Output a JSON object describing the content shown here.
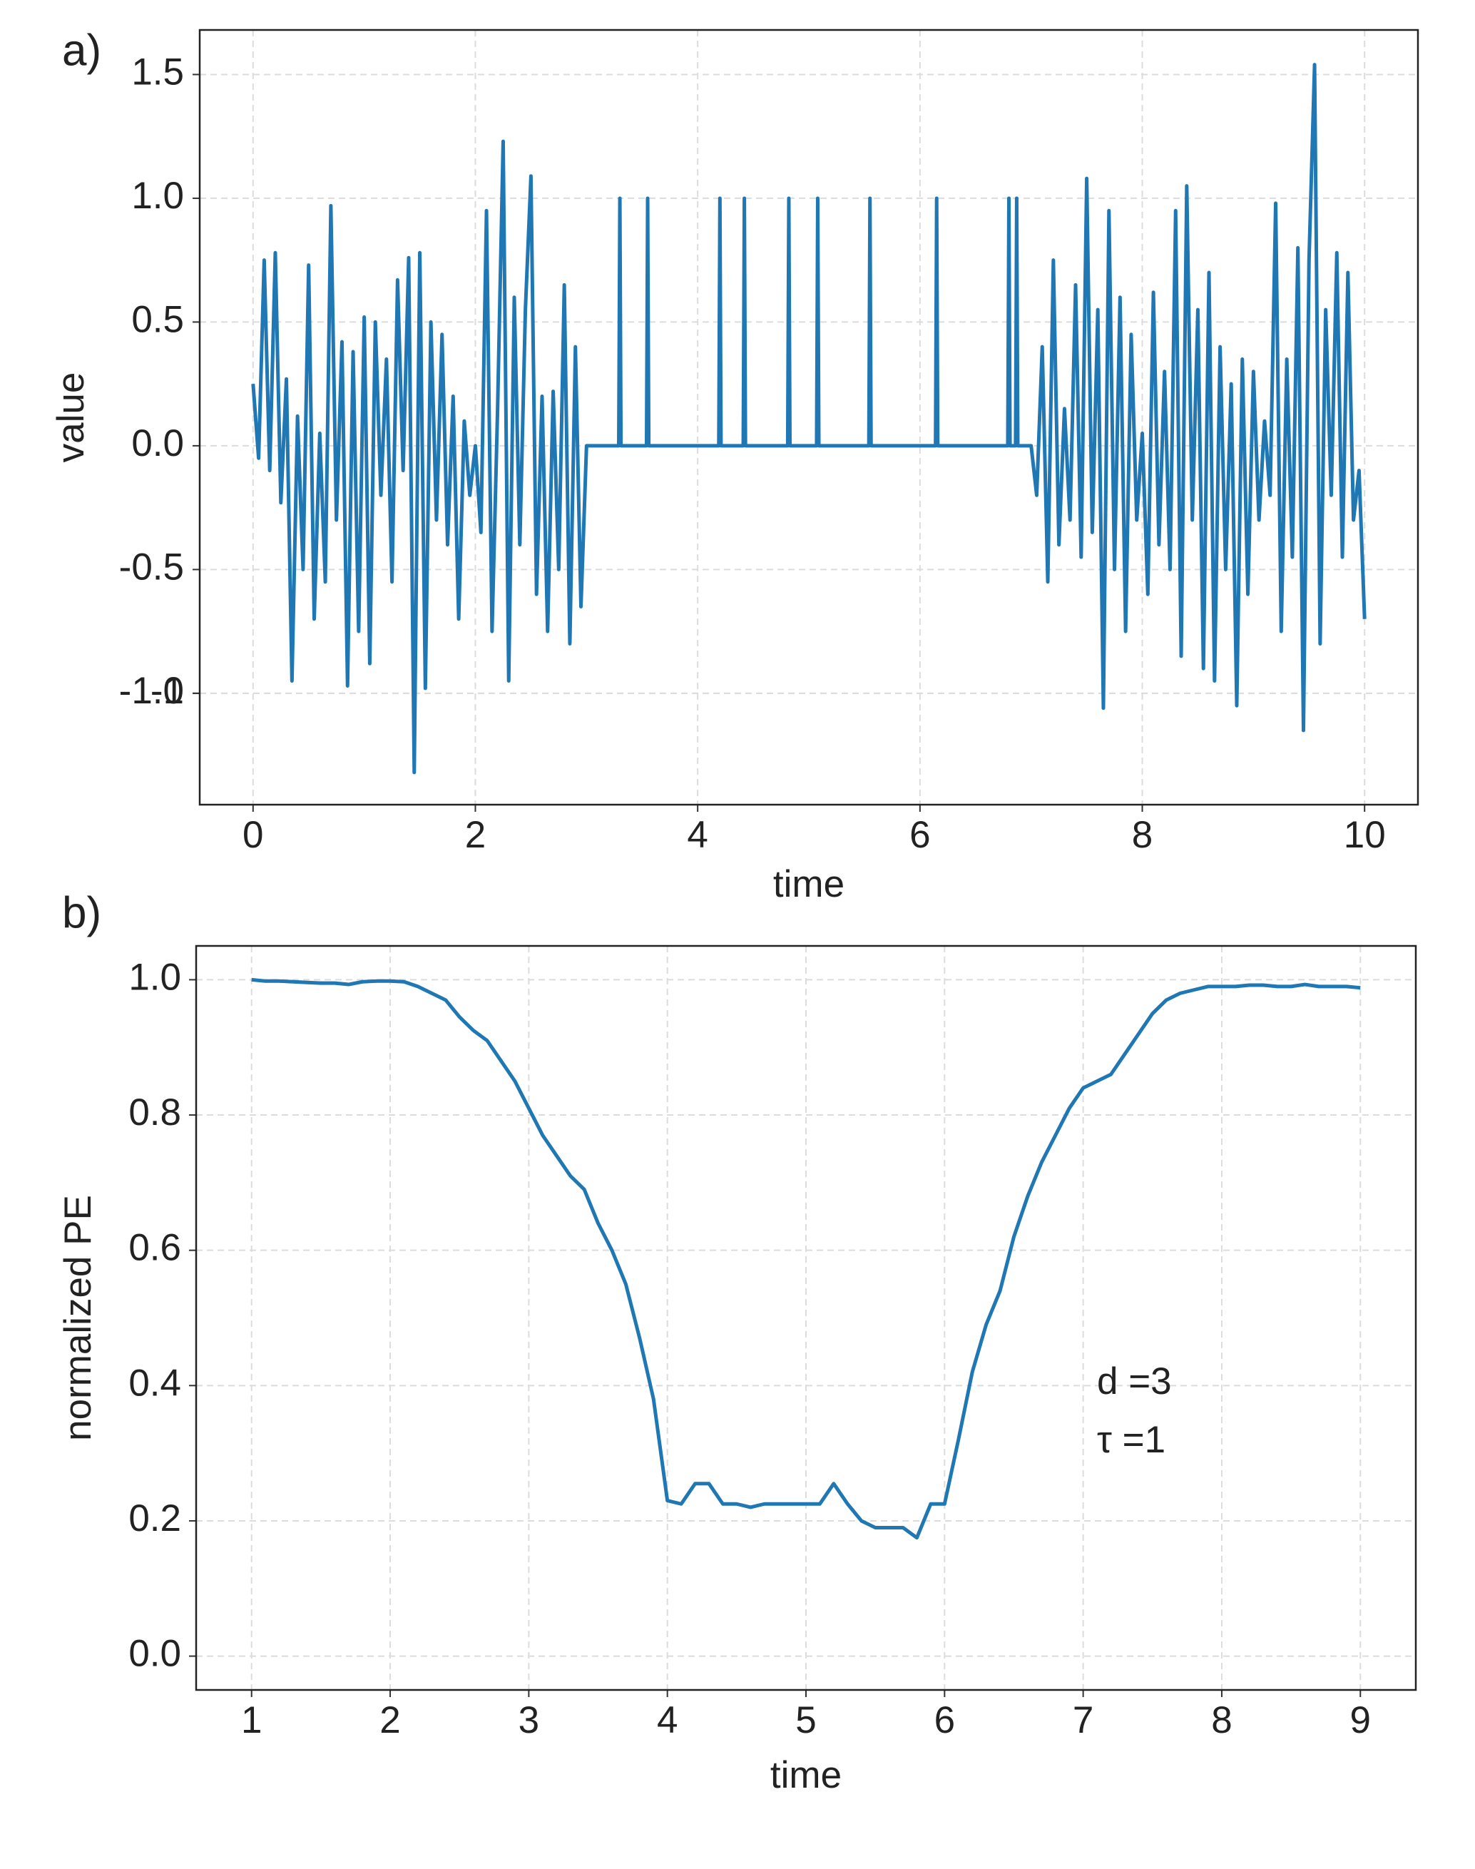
{
  "chart_data": [
    {
      "type": "line",
      "panel_label": "a)",
      "xlabel": "time",
      "ylabel": "value",
      "xlim": [
        -0.48,
        10.48
      ],
      "ylim": [
        -1.45,
        1.68
      ],
      "xticks": [
        0,
        2,
        4,
        6,
        8,
        10
      ],
      "yticks": [
        -1,
        {
          "value": -1,
          "label": "-1.0"
        },
        -0.5,
        {
          "value": 0,
          "label": "0.0"
        },
        0.5,
        {
          "value": 1,
          "label": "1.0"
        },
        1.5
      ],
      "grid": true,
      "color": "#1f77b4",
      "x": [
        0,
        0.05,
        0.1,
        0.15,
        0.2,
        0.25,
        0.3,
        0.35,
        0.4,
        0.45,
        0.5,
        0.55,
        0.6,
        0.65,
        0.7,
        0.75,
        0.8,
        0.85,
        0.9,
        0.95,
        1.0,
        1.05,
        1.1,
        1.15,
        1.2,
        1.25,
        1.3,
        1.35,
        1.4,
        1.45,
        1.5,
        1.55,
        1.6,
        1.65,
        1.7,
        1.75,
        1.8,
        1.85,
        1.9,
        1.95,
        2.0,
        2.05,
        2.1,
        2.15,
        2.2,
        2.25,
        2.3,
        2.35,
        2.4,
        2.45,
        2.5,
        2.55,
        2.6,
        2.65,
        2.7,
        2.75,
        2.8,
        2.85,
        2.9,
        2.95,
        3.0,
        3.29,
        3.3,
        3.31,
        3.54,
        3.55,
        3.56,
        4.19,
        4.2,
        4.21,
        4.41,
        4.42,
        4.43,
        4.81,
        4.82,
        4.83,
        5.07,
        5.08,
        5.09,
        5.54,
        5.55,
        5.56,
        6.14,
        6.15,
        6.16,
        6.79,
        6.8,
        6.81,
        6.86,
        6.87,
        6.88,
        7.0,
        7.05,
        7.1,
        7.15,
        7.2,
        7.25,
        7.3,
        7.35,
        7.4,
        7.45,
        7.5,
        7.55,
        7.6,
        7.65,
        7.7,
        7.75,
        7.8,
        7.85,
        7.9,
        7.95,
        8.0,
        8.05,
        8.1,
        8.15,
        8.2,
        8.25,
        8.3,
        8.35,
        8.4,
        8.45,
        8.5,
        8.55,
        8.6,
        8.65,
        8.7,
        8.75,
        8.8,
        8.85,
        8.9,
        8.95,
        9.0,
        9.05,
        9.1,
        9.15,
        9.2,
        9.25,
        9.3,
        9.35,
        9.4,
        9.45,
        9.5,
        9.55,
        9.6,
        9.65,
        9.7,
        9.75,
        9.8,
        9.85,
        9.9,
        9.95,
        10.0
      ],
      "values": [
        0.25,
        -0.05,
        0.75,
        -0.1,
        0.78,
        -0.23,
        0.27,
        -0.95,
        0.12,
        -0.5,
        0.73,
        -0.7,
        0.05,
        -0.55,
        0.97,
        -0.3,
        0.42,
        -0.97,
        0.38,
        -0.75,
        0.52,
        -0.88,
        0.5,
        -0.2,
        0.35,
        -0.55,
        0.67,
        -0.1,
        0.76,
        -1.32,
        0.78,
        -0.98,
        0.5,
        -0.3,
        0.45,
        -0.4,
        0.2,
        -0.7,
        0.1,
        -0.2,
        0.0,
        -0.35,
        0.95,
        -0.75,
        0.15,
        1.23,
        -0.95,
        0.6,
        -0.4,
        0.55,
        1.09,
        -0.6,
        0.2,
        -0.75,
        0.22,
        -0.5,
        0.65,
        -0.8,
        0.4,
        -0.65,
        0.0,
        0,
        1,
        0,
        0,
        1,
        0,
        0,
        1,
        0,
        0,
        1,
        0,
        0,
        1,
        0,
        0,
        1,
        0,
        0,
        1,
        0,
        0,
        1,
        0,
        0,
        1,
        0,
        0,
        1,
        0,
        0,
        -0.2,
        0.4,
        -0.55,
        0.75,
        -0.4,
        0.15,
        -0.3,
        0.65,
        -0.45,
        1.08,
        -0.35,
        0.55,
        -1.06,
        0.95,
        -0.5,
        0.6,
        -0.75,
        0.45,
        -0.3,
        0.05,
        -0.6,
        0.62,
        -0.4,
        0.3,
        -0.5,
        0.95,
        -0.85,
        1.05,
        -0.3,
        0.55,
        -0.9,
        0.7,
        -0.95,
        0.4,
        -0.5,
        0.25,
        -1.05,
        0.35,
        -0.6,
        0.3,
        -0.3,
        0.1,
        -0.2,
        0.98,
        -0.75,
        0.35,
        -0.45,
        0.8,
        -1.15,
        0.75,
        1.54,
        -0.8,
        0.55,
        -0.2,
        0.78,
        -0.45,
        0.7,
        -0.3,
        -0.1,
        -0.7
      ]
    },
    {
      "type": "line",
      "panel_label": "b)",
      "xlabel": "time",
      "ylabel": "normalized PE",
      "annotations": [
        "d =3",
        "τ =1"
      ],
      "xlim": [
        0.6,
        9.4
      ],
      "ylim": [
        -0.05,
        1.05
      ],
      "xticks": [
        1,
        2,
        3,
        4,
        5,
        6,
        7,
        8,
        9
      ],
      "yticks": [
        {
          "value": 0,
          "label": "0.0"
        },
        0.2,
        0.4,
        0.6,
        0.8,
        {
          "value": 1,
          "label": "1.0"
        }
      ],
      "grid": true,
      "color": "#1f77b4",
      "x": [
        1.0,
        1.1,
        1.2,
        1.3,
        1.4,
        1.5,
        1.6,
        1.7,
        1.8,
        1.9,
        2.0,
        2.1,
        2.2,
        2.3,
        2.4,
        2.5,
        2.6,
        2.7,
        2.8,
        2.9,
        3.0,
        3.1,
        3.2,
        3.3,
        3.4,
        3.5,
        3.6,
        3.7,
        3.8,
        3.9,
        4.0,
        4.1,
        4.2,
        4.3,
        4.4,
        4.5,
        4.6,
        4.7,
        4.8,
        4.9,
        5.0,
        5.1,
        5.2,
        5.3,
        5.4,
        5.5,
        5.6,
        5.7,
        5.8,
        5.9,
        6.0,
        6.1,
        6.2,
        6.3,
        6.4,
        6.5,
        6.6,
        6.7,
        6.8,
        6.9,
        7.0,
        7.1,
        7.2,
        7.3,
        7.4,
        7.5,
        7.6,
        7.7,
        7.8,
        7.9,
        8.0,
        8.1,
        8.2,
        8.3,
        8.4,
        8.5,
        8.6,
        8.7,
        8.8,
        8.9,
        9.0
      ],
      "values": [
        1.0,
        0.998,
        0.998,
        0.997,
        0.996,
        0.995,
        0.995,
        0.993,
        0.997,
        0.998,
        0.998,
        0.997,
        0.99,
        0.98,
        0.97,
        0.945,
        0.925,
        0.91,
        0.88,
        0.85,
        0.81,
        0.77,
        0.74,
        0.71,
        0.69,
        0.64,
        0.6,
        0.55,
        0.47,
        0.38,
        0.23,
        0.225,
        0.255,
        0.255,
        0.225,
        0.225,
        0.22,
        0.225,
        0.225,
        0.225,
        0.225,
        0.225,
        0.255,
        0.225,
        0.2,
        0.19,
        0.19,
        0.19,
        0.175,
        0.225,
        0.225,
        0.32,
        0.42,
        0.49,
        0.54,
        0.62,
        0.68,
        0.73,
        0.77,
        0.81,
        0.84,
        0.85,
        0.86,
        0.89,
        0.92,
        0.95,
        0.97,
        0.98,
        0.985,
        0.99,
        0.99,
        0.99,
        0.992,
        0.992,
        0.99,
        0.99,
        0.993,
        0.99,
        0.99,
        0.99,
        0.988
      ]
    }
  ]
}
